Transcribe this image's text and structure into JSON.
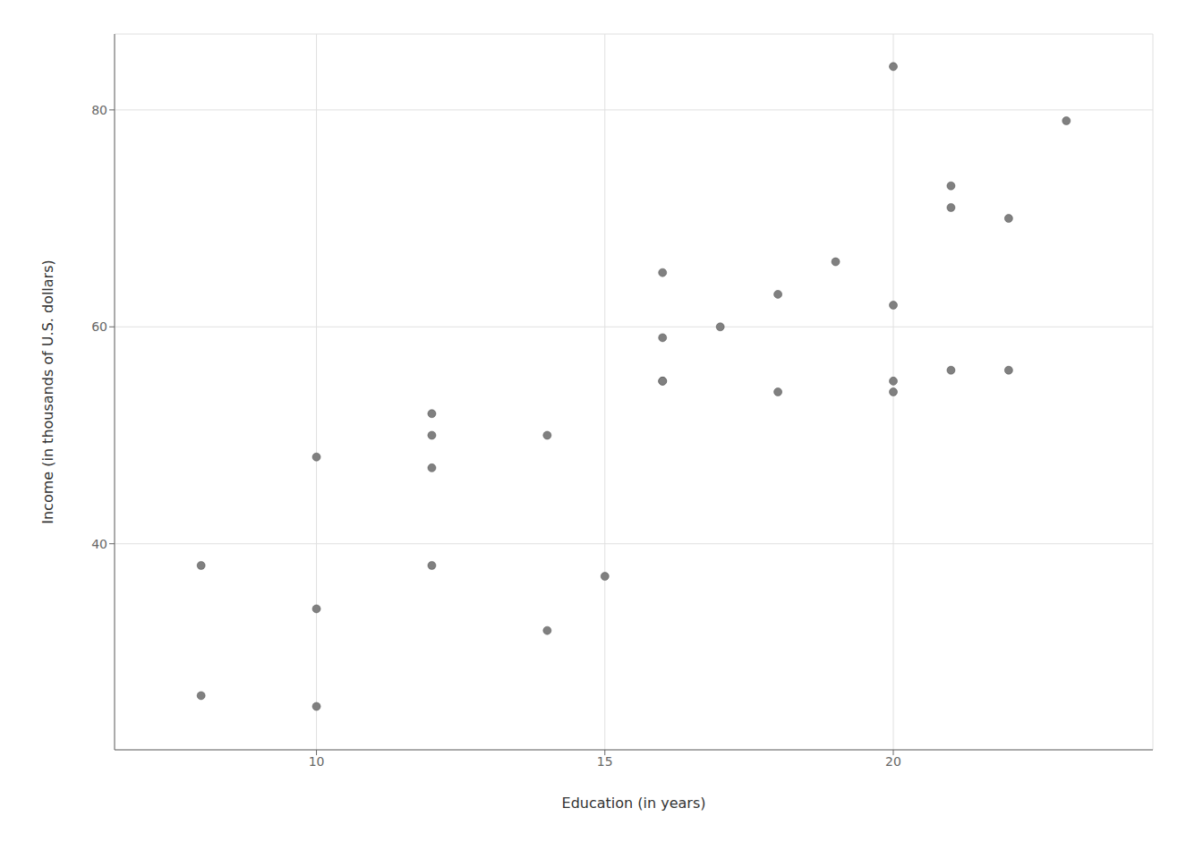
{
  "chart_data": {
    "type": "scatter",
    "x": [
      8,
      8,
      10,
      10,
      10,
      12,
      12,
      12,
      12,
      14,
      14,
      15,
      16,
      16,
      16,
      16,
      17,
      18,
      18,
      19,
      20,
      20,
      20,
      20,
      21,
      21,
      21,
      22,
      22,
      23
    ],
    "y": [
      26,
      38,
      25,
      34,
      48,
      38,
      47,
      50,
      52,
      32,
      50,
      37,
      55,
      55,
      59,
      65,
      60,
      54,
      63,
      66,
      54,
      55,
      62,
      84,
      56,
      71,
      73,
      56,
      70,
      79
    ],
    "xlabel": "Education (in years)",
    "ylabel": "Income (in thousands of U.S. dollars)",
    "xlim": [
      6.5,
      24.5
    ],
    "ylim": [
      21,
      87
    ],
    "xticks": [
      10,
      15,
      20
    ],
    "yticks": [
      40,
      60,
      80
    ],
    "color": "#808080",
    "grid": true
  }
}
